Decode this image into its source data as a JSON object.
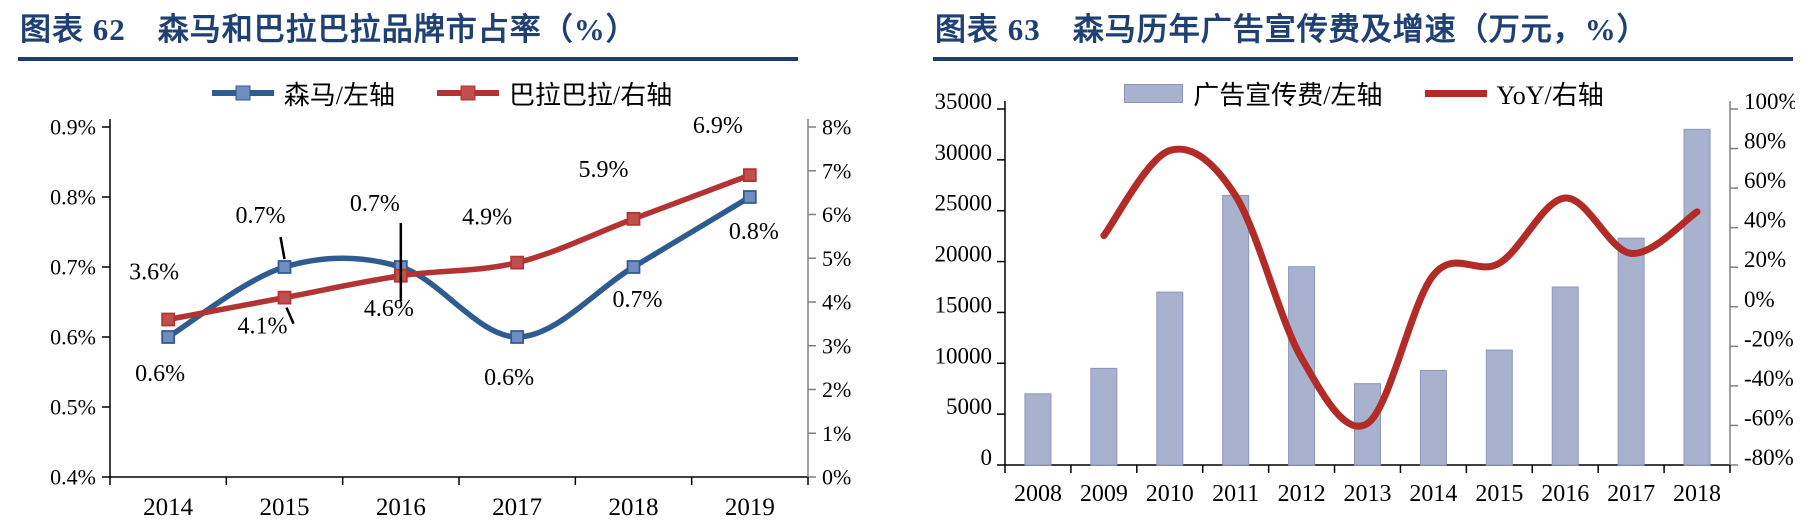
{
  "style": {
    "background": "#FFFFFF",
    "title_color": "#1F4073",
    "underline_color": "#1C3D6E",
    "axis_color": "#000000",
    "secondary_axis_color": "#808080",
    "text_color": "#000000"
  },
  "chart_data": [
    {
      "type": "line",
      "figure_label": "图表 62",
      "title": "图表 62　森马和巴拉巴拉品牌市占率（%）",
      "categories": [
        "2014",
        "2015",
        "2016",
        "2017",
        "2018",
        "2019"
      ],
      "series": [
        {
          "name": "森马/左轴",
          "axis": "left",
          "type": "line",
          "color": "#2E5C90",
          "marker_fill": "#6F8DC0",
          "values": [
            0.6,
            0.7,
            0.7,
            0.6,
            0.7,
            0.8
          ],
          "point_labels": [
            "0.6%",
            "0.7%",
            "0.7%",
            "0.6%",
            "0.7%",
            "0.8%"
          ]
        },
        {
          "name": "巴拉巴拉/右轴",
          "axis": "right",
          "type": "line",
          "color": "#B23432",
          "marker_fill": "#C0504D",
          "values": [
            3.6,
            4.1,
            4.6,
            4.9,
            5.9,
            6.9
          ],
          "point_labels": [
            "3.6%",
            "4.1%",
            "4.6%",
            "4.9%",
            "5.9%",
            "6.9%"
          ]
        }
      ],
      "left_axis": {
        "min": 0.4,
        "max": 0.9,
        "unit": "%",
        "tick_labels": [
          "0.9%",
          "0.8%",
          "0.7%",
          "0.6%",
          "0.5%",
          "0.4%"
        ]
      },
      "right_axis": {
        "min": 0,
        "max": 8,
        "unit": "%",
        "tick_labels": [
          "8%",
          "7%",
          "6%",
          "5%",
          "4%",
          "3%",
          "2%",
          "1%",
          "0%"
        ]
      },
      "legend_position": "top",
      "grid": false
    },
    {
      "type": "bar",
      "figure_label": "图表 63",
      "title": "图表 63　森马历年广告宣传费及增速（万元，%）",
      "categories": [
        "2008",
        "2009",
        "2010",
        "2011",
        "2012",
        "2013",
        "2014",
        "2015",
        "2016",
        "2017",
        "2018"
      ],
      "series": [
        {
          "name": "广告宣传费/左轴",
          "axis": "left",
          "type": "bar",
          "color": "#A8B2CF",
          "border_color": "#8C97BB",
          "values": [
            7000,
            9500,
            17000,
            26500,
            19500,
            8000,
            9300,
            11300,
            17500,
            22300,
            33000
          ]
        },
        {
          "name": "YoY/右轴",
          "axis": "right",
          "type": "line",
          "color": "#B32B27",
          "values": [
            null,
            36,
            79,
            56,
            -26,
            -59,
            16,
            22,
            55,
            27,
            48
          ]
        }
      ],
      "left_axis": {
        "min": 0,
        "max": 35000,
        "tick_labels": [
          "35000",
          "30000",
          "25000",
          "20000",
          "15000",
          "10000",
          "5000",
          "0"
        ]
      },
      "right_axis": {
        "min": -80,
        "max": 100,
        "unit": "%",
        "tick_labels": [
          "100%",
          "80%",
          "60%",
          "40%",
          "20%",
          "0%",
          "-20%",
          "-40%",
          "-60%",
          "-80%"
        ]
      },
      "legend_position": "top",
      "grid": false
    }
  ]
}
